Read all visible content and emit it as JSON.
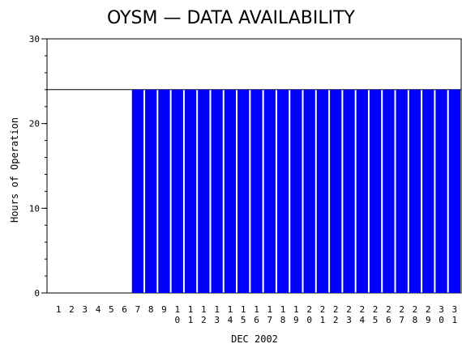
{
  "chart_data": {
    "type": "bar",
    "title": "OYSM  —  DATA AVAILABILITY",
    "xlabel": "DEC 2002",
    "ylabel": "Hours of Operation",
    "ylim": [
      0,
      30
    ],
    "yticks": [
      0,
      10,
      20,
      30
    ],
    "reference_line": 24,
    "categories": [
      "1",
      "2",
      "3",
      "4",
      "5",
      "6",
      "7",
      "8",
      "9",
      "10",
      "11",
      "12",
      "13",
      "14",
      "15",
      "16",
      "17",
      "18",
      "19",
      "20",
      "21",
      "22",
      "23",
      "24",
      "25",
      "26",
      "27",
      "28",
      "29",
      "30",
      "31"
    ],
    "values": [
      0,
      0,
      0,
      0,
      0,
      0,
      24,
      24,
      24,
      24,
      24,
      24,
      24,
      24,
      24,
      24,
      24,
      24,
      24,
      24,
      24,
      24,
      24,
      24,
      24,
      24,
      24,
      24,
      24,
      24,
      24
    ],
    "bar_color": "#0000ff",
    "grid": false,
    "legend": "none"
  }
}
